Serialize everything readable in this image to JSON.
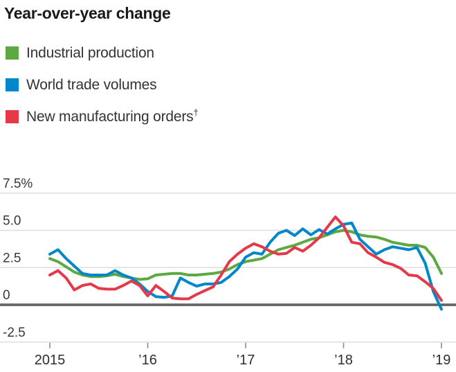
{
  "title": "Year-over-year change",
  "legend": [
    {
      "label": "Industrial production",
      "sup": "",
      "color": "#5ca942"
    },
    {
      "label": "World trade volumes",
      "sup": "",
      "color": "#0087cb"
    },
    {
      "label": "New manufacturing orders",
      "sup": "†",
      "color": "#e5394a"
    }
  ],
  "chart_data": {
    "type": "line",
    "title": "Year-over-year change",
    "unit": "%",
    "x_description": "Monthly, January 2015 through January 2019",
    "grid": "horizontal",
    "legend_position": "top-left",
    "ylim": [
      -3.0,
      8.5
    ],
    "y_ticks": [
      {
        "label": "7.5%",
        "value": 7.5
      },
      {
        "label": "5.0",
        "value": 5.0
      },
      {
        "label": "2.5",
        "value": 2.5
      },
      {
        "label": "0",
        "value": 0
      },
      {
        "label": "-2.5",
        "value": -2.5
      }
    ],
    "x_ticks": [
      {
        "label": "2015",
        "year": 2015
      },
      {
        "label": "’16",
        "year": 2016
      },
      {
        "label": "’17",
        "year": 2017
      },
      {
        "label": "’18",
        "year": 2018
      },
      {
        "label": "’19",
        "year": 2019
      }
    ],
    "series": [
      {
        "name": "Industrial production",
        "color": "#5ca942",
        "values": [
          3.1,
          2.9,
          2.55,
          2.2,
          2.0,
          1.9,
          1.9,
          1.95,
          2.05,
          1.9,
          1.8,
          1.7,
          1.75,
          2.0,
          2.05,
          2.1,
          2.1,
          2.0,
          2.0,
          2.05,
          2.1,
          2.2,
          2.4,
          2.7,
          2.9,
          3.0,
          3.1,
          3.4,
          3.7,
          3.85,
          4.0,
          4.2,
          4.4,
          4.5,
          4.7,
          4.9,
          5.0,
          4.9,
          4.7,
          4.6,
          4.55,
          4.4,
          4.2,
          4.1,
          4.0,
          4.0,
          3.85,
          3.2,
          2.1
        ]
      },
      {
        "name": "World trade volumes",
        "color": "#0087cb",
        "values": [
          3.4,
          3.7,
          3.1,
          2.6,
          2.1,
          2.0,
          2.0,
          2.0,
          2.3,
          2.0,
          1.8,
          1.4,
          0.9,
          0.55,
          0.5,
          0.6,
          1.8,
          1.5,
          1.25,
          1.4,
          1.4,
          1.5,
          1.9,
          2.4,
          3.2,
          3.5,
          3.4,
          4.2,
          4.8,
          5.0,
          4.65,
          5.1,
          4.7,
          5.05,
          4.75,
          5.1,
          5.4,
          5.5,
          4.4,
          3.9,
          3.4,
          3.7,
          3.9,
          3.8,
          3.7,
          3.85,
          2.8,
          0.9,
          -0.3
        ]
      },
      {
        "name": "New manufacturing orders†",
        "color": "#e5394a",
        "values": [
          2.0,
          2.3,
          1.8,
          1.0,
          1.3,
          1.4,
          1.1,
          1.05,
          1.05,
          1.3,
          1.6,
          1.3,
          0.6,
          1.3,
          0.9,
          0.45,
          0.4,
          0.4,
          0.7,
          0.95,
          1.2,
          2.0,
          2.9,
          3.4,
          3.8,
          4.1,
          3.9,
          3.6,
          3.4,
          3.45,
          3.85,
          3.6,
          4.0,
          4.5,
          5.2,
          5.9,
          5.3,
          4.2,
          4.1,
          3.5,
          3.2,
          2.85,
          2.7,
          2.45,
          2.0,
          1.95,
          1.55,
          1.1,
          0.3
        ]
      }
    ]
  }
}
